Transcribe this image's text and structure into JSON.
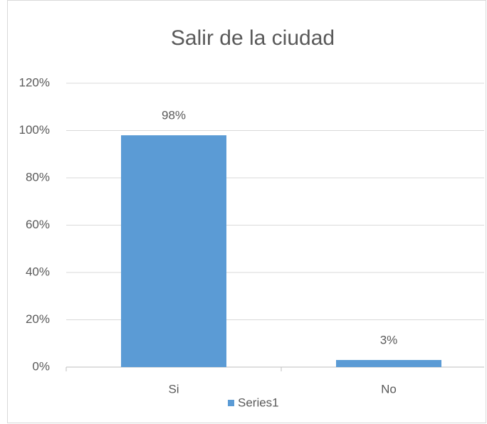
{
  "chart_data": {
    "type": "bar",
    "title": "Salir de la ciudad",
    "categories": [
      "Si",
      "No"
    ],
    "series": [
      {
        "name": "Series1",
        "color": "#5b9bd5",
        "values": [
          98,
          3
        ],
        "value_labels": [
          "98%",
          "3%"
        ]
      }
    ],
    "ylim": [
      0,
      120
    ],
    "yticks": [
      {
        "value": 0,
        "label": "0%"
      },
      {
        "value": 20,
        "label": "20%"
      },
      {
        "value": 40,
        "label": "40%"
      },
      {
        "value": 60,
        "label": "60%"
      },
      {
        "value": 80,
        "label": "80%"
      },
      {
        "value": 100,
        "label": "100%"
      },
      {
        "value": 120,
        "label": "120%"
      }
    ],
    "grid": true,
    "legend": "bottom"
  }
}
